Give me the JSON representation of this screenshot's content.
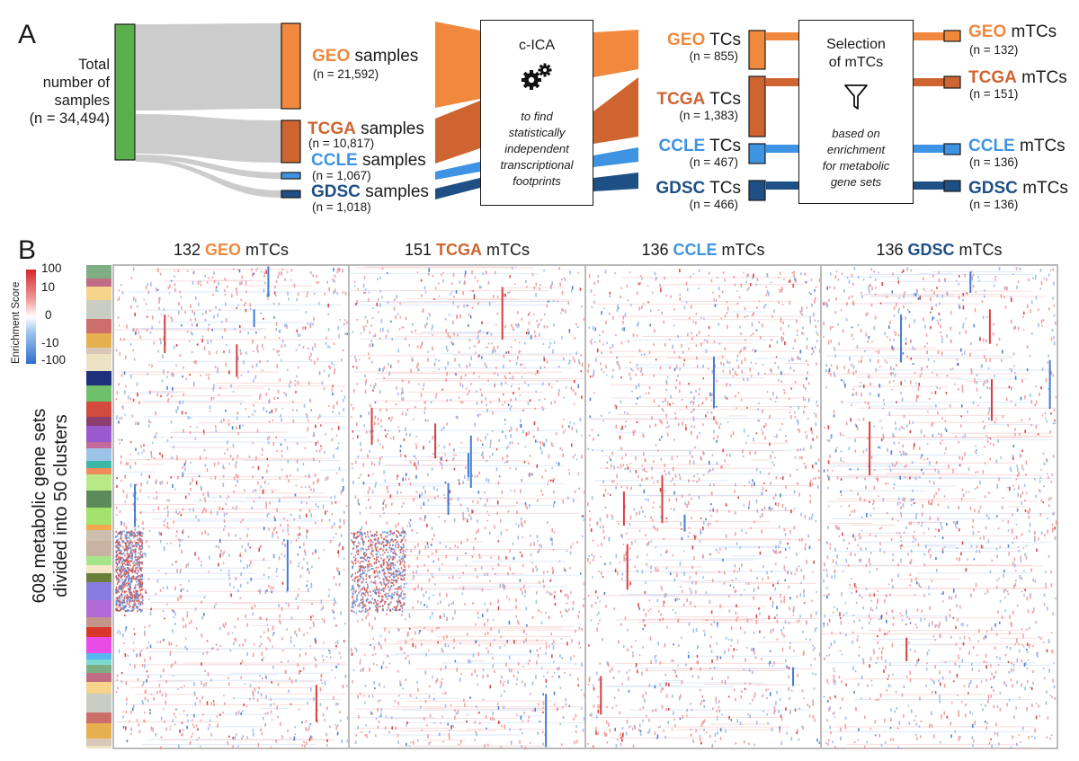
{
  "panel_a": {
    "letter": "A",
    "total": {
      "line1": "Total",
      "line2": "number of",
      "line3": "samples",
      "n": "(n = 34,494)"
    },
    "sources": [
      {
        "name": "GEO",
        "suffix": "samples",
        "n": "(n = 21,592)",
        "color": "#F0883D"
      },
      {
        "name": "TCGA",
        "suffix": "samples",
        "n": "(n = 10,817)",
        "color": "#CE6430"
      },
      {
        "name": "CCLE",
        "suffix": "samples",
        "n": "(n = 1,067)",
        "color": "#3E93E2"
      },
      {
        "name": "GDSC",
        "suffix": "samples",
        "n": "(n = 1,018)",
        "color": "#1E4F85"
      }
    ],
    "cica": {
      "title": "c-ICA",
      "note1": "to find",
      "note2": "statistically",
      "note3": "independent",
      "note4": "transcriptional",
      "note5": "footprints"
    },
    "tcs": [
      {
        "name": "GEO",
        "suffix": "TCs",
        "n": "(n = 855)"
      },
      {
        "name": "TCGA",
        "suffix": "TCs",
        "n": "(n = 1,383)"
      },
      {
        "name": "CCLE",
        "suffix": "TCs",
        "n": "(n = 467)"
      },
      {
        "name": "GDSC",
        "suffix": "TCs",
        "n": "(n = 466)"
      }
    ],
    "selection": {
      "title1": "Selection",
      "title2": "of mTCs",
      "note1": "based on",
      "note2": "enrichment",
      "note3": "for metabolic",
      "note4": "gene sets"
    },
    "mtcs": [
      {
        "name": "GEO",
        "suffix": "mTCs",
        "n": "(n = 132)"
      },
      {
        "name": "TCGA",
        "suffix": "mTCs",
        "n": "(n = 151)"
      },
      {
        "name": "CCLE",
        "suffix": "mTCs",
        "n": "(n = 136)"
      },
      {
        "name": "GDSC",
        "suffix": "mTCs",
        "n": "(n = 136)"
      }
    ]
  },
  "panel_b": {
    "letter": "B",
    "columns": [
      {
        "count": "132",
        "name": "GEO",
        "suffix": "mTCs"
      },
      {
        "count": "151",
        "name": "TCGA",
        "suffix": "mTCs"
      },
      {
        "count": "136",
        "name": "CCLE",
        "suffix": "mTCs"
      },
      {
        "count": "136",
        "name": "GDSC",
        "suffix": "mTCs"
      }
    ],
    "colorbar": {
      "title": "Enrichment Score",
      "ticks": [
        "100",
        "10",
        "0",
        "-10",
        "-100"
      ],
      "low_color": "#2F6FD0",
      "mid_color": "#FFFFFF",
      "high_color": "#D42A2A"
    },
    "row_label_line1": "608 metabolic gene sets",
    "row_label_line2": "divided into 50 clusters",
    "grid_color": "#BBBBBB"
  },
  "colors": {
    "total_green": "#5BAE4E",
    "flow_gray": "#CCCCCC",
    "geo": "#F0883D",
    "tcga": "#CE6430",
    "ccle": "#3E93E2",
    "gdsc": "#1E4F85"
  }
}
